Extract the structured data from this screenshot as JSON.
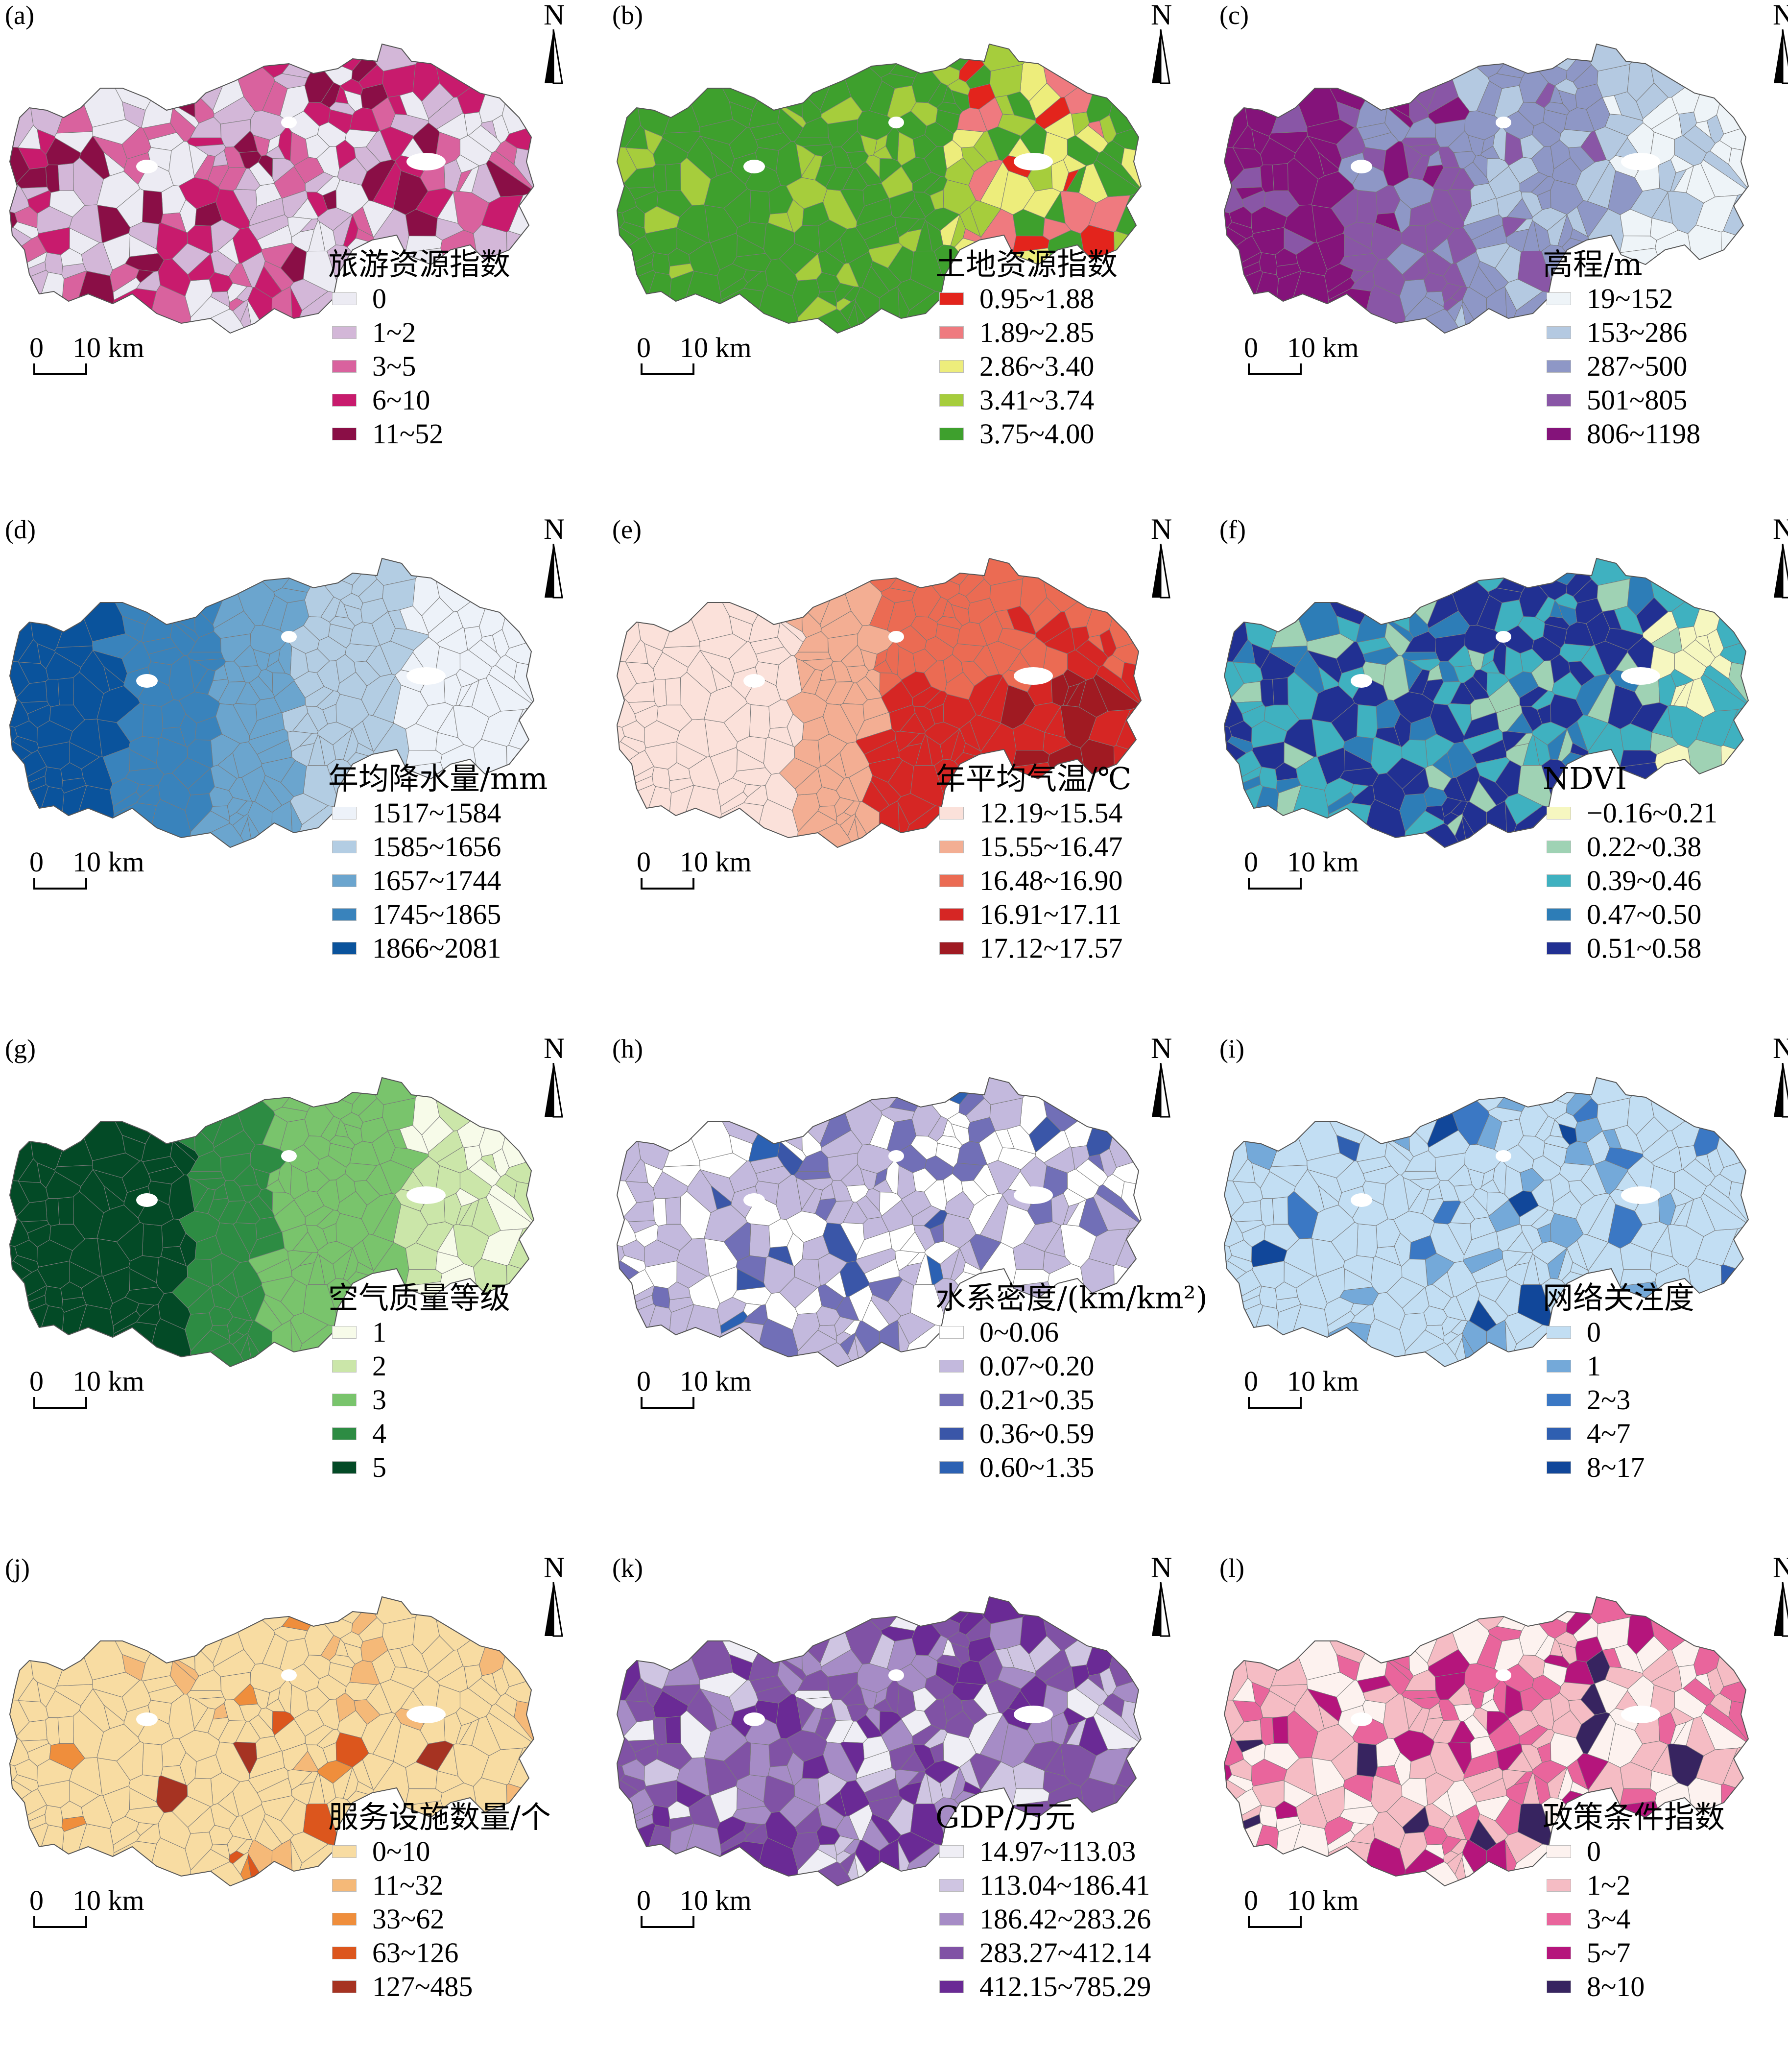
{
  "scale_bar": {
    "zero": "0",
    "distance": "10 km"
  },
  "north_arrow": {
    "letter": "N",
    "icon": "north-arrow-icon"
  },
  "panels": [
    {
      "label": "(a)",
      "title": "旅游资源指数",
      "legend": [
        {
          "range": "0",
          "color": "#ecebf3"
        },
        {
          "range": "1~2",
          "color": "#d3b7d8"
        },
        {
          "range": "3~5",
          "color": "#d9629e"
        },
        {
          "range": "6~10",
          "color": "#c81b6d"
        },
        {
          "range": "11~52",
          "color": "#8a0e46"
        }
      ]
    },
    {
      "label": "(b)",
      "title": "土地资源指数",
      "legend": [
        {
          "range": "0.95~1.88",
          "color": "#e3241c"
        },
        {
          "range": "1.89~2.85",
          "color": "#ef7a7f"
        },
        {
          "range": "2.86~3.40",
          "color": "#eded7b"
        },
        {
          "range": "3.41~3.74",
          "color": "#a6cd3c"
        },
        {
          "range": "3.75~4.00",
          "color": "#3ea02d"
        }
      ]
    },
    {
      "label": "(c)",
      "title": "高程/m",
      "legend": [
        {
          "range": "19~152",
          "color": "#eef4f8"
        },
        {
          "range": "153~286",
          "color": "#b4c9e1"
        },
        {
          "range": "287~500",
          "color": "#8e97c6"
        },
        {
          "range": "501~805",
          "color": "#8956a6"
        },
        {
          "range": "806~1198",
          "color": "#84137a"
        }
      ]
    },
    {
      "label": "(d)",
      "title": "年均降水量/mm",
      "legend": [
        {
          "range": "1517~1584",
          "color": "#edf2f9"
        },
        {
          "range": "1585~1656",
          "color": "#b3cde3"
        },
        {
          "range": "1657~1744",
          "color": "#6ba5ce"
        },
        {
          "range": "1745~1865",
          "color": "#3983bc"
        },
        {
          "range": "1866~2081",
          "color": "#0a539c"
        }
      ]
    },
    {
      "label": "(e)",
      "title": "年平均气温/℃",
      "legend": [
        {
          "range": "12.19~15.54",
          "color": "#fbe1da"
        },
        {
          "range": "15.55~16.47",
          "color": "#f3ae93"
        },
        {
          "range": "16.48~16.90",
          "color": "#eb6b53"
        },
        {
          "range": "16.91~17.11",
          "color": "#d62624"
        },
        {
          "range": "17.12~17.57",
          "color": "#a01a22"
        }
      ]
    },
    {
      "label": "(f)",
      "title": "NDVI",
      "legend": [
        {
          "range": "−0.16~0.21",
          "color": "#f6f7c0"
        },
        {
          "range": "0.22~0.38",
          "color": "#9fd2b4"
        },
        {
          "range": "0.39~0.46",
          "color": "#3fb1c0"
        },
        {
          "range": "0.47~0.50",
          "color": "#2d7db7"
        },
        {
          "range": "0.51~0.58",
          "color": "#213092"
        }
      ]
    },
    {
      "label": "(g)",
      "title": "空气质量等级",
      "legend": [
        {
          "range": "1",
          "color": "#f7fbe9"
        },
        {
          "range": "2",
          "color": "#cbe6a9"
        },
        {
          "range": "3",
          "color": "#79c46c"
        },
        {
          "range": "4",
          "color": "#2d8c43"
        },
        {
          "range": "5",
          "color": "#034a26"
        }
      ]
    },
    {
      "label": "(h)",
      "title": "水系密度/(km/km²)",
      "legend": [
        {
          "range": "0~0.06",
          "color": "#ffffff"
        },
        {
          "range": "0.07~0.20",
          "color": "#c3b9dd"
        },
        {
          "range": "0.21~0.35",
          "color": "#716fb7"
        },
        {
          "range": "0.36~0.59",
          "color": "#3a56a8"
        },
        {
          "range": "0.60~1.35",
          "color": "#2b61b3"
        }
      ]
    },
    {
      "label": "(i)",
      "title": "网络关注度",
      "legend": [
        {
          "range": "0",
          "color": "#c2def3"
        },
        {
          "range": "1",
          "color": "#74a9d9"
        },
        {
          "range": "2~3",
          "color": "#3b78c4"
        },
        {
          "range": "4~7",
          "color": "#2f5fb1"
        },
        {
          "range": "8~17",
          "color": "#11479a"
        }
      ]
    },
    {
      "label": "(j)",
      "title": "服务设施数量/个",
      "legend": [
        {
          "range": "0~10",
          "color": "#f8dca2"
        },
        {
          "range": "11~32",
          "color": "#f5b978"
        },
        {
          "range": "33~62",
          "color": "#ef8e3c"
        },
        {
          "range": "63~126",
          "color": "#dc561d"
        },
        {
          "range": "127~485",
          "color": "#a63322"
        }
      ]
    },
    {
      "label": "(k)",
      "title": "GDP/万元",
      "legend": [
        {
          "range": "14.97~113.03",
          "color": "#efeef5"
        },
        {
          "range": "113.04~186.41",
          "color": "#cfc5e2"
        },
        {
          "range": "186.42~283.26",
          "color": "#a68cc6"
        },
        {
          "range": "283.27~412.14",
          "color": "#8052a5"
        },
        {
          "range": "412.15~785.29",
          "color": "#6a2a95"
        }
      ]
    },
    {
      "label": "(l)",
      "title": "政策条件指数",
      "legend": [
        {
          "range": "0",
          "color": "#fdf2ef"
        },
        {
          "range": "1~2",
          "color": "#f5bcc4"
        },
        {
          "range": "3~4",
          "color": "#e9659c"
        },
        {
          "range": "5~7",
          "color": "#b5157c"
        },
        {
          "range": "8~10",
          "color": "#372460"
        }
      ]
    }
  ]
}
